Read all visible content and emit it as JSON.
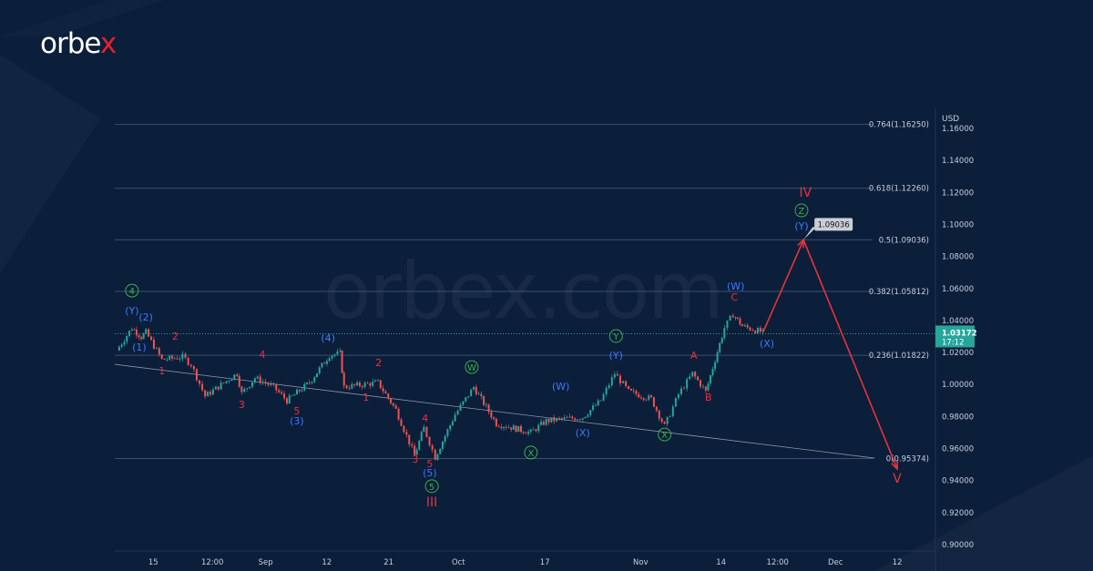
{
  "brand": {
    "logo_main": "orbe",
    "logo_accent": "x",
    "watermark": "orbex.com"
  },
  "colors": {
    "background": "#0b1e3a",
    "up": "#26a69a",
    "down": "#ef5350",
    "wave_red": "#e8333c",
    "wave_blue": "#3d7bff",
    "wave_green": "#3fae49",
    "price_tag": "#26a69a",
    "fib": "#3a5170"
  },
  "chart_data": {
    "type": "line",
    "title": "",
    "currency_label": "USD",
    "ylim": [
      0.89,
      1.165
    ],
    "xlim": [
      -0.7,
      123
    ],
    "y_ticks": [
      "1.16000",
      "1.14000",
      "1.12000",
      "1.10000",
      "1.08000",
      "1.06000",
      "1.04000",
      "1.02000",
      "1.00000",
      "0.98000",
      "0.96000",
      "0.94000",
      "0.92000",
      "0.90000"
    ],
    "x_ticks": [
      {
        "label": "15",
        "day": 5.1
      },
      {
        "label": "12:00",
        "day": 14
      },
      {
        "label": "Sep",
        "day": 22
      },
      {
        "label": "12",
        "day": 31.2
      },
      {
        "label": "21",
        "day": 40.5
      },
      {
        "label": "Oct",
        "day": 51
      },
      {
        "label": "17",
        "day": 64
      },
      {
        "label": "Nov",
        "day": 78.4
      },
      {
        "label": "14",
        "day": 90.5
      },
      {
        "label": "12:00",
        "day": 99
      },
      {
        "label": "Dec",
        "day": 107.7
      },
      {
        "label": "12",
        "day": 117
      }
    ],
    "series": [
      {
        "name": "price",
        "points": [
          [
            -0.4,
            1.0212
          ],
          [
            1.9,
            1.0354
          ],
          [
            3.3,
            1.0297
          ],
          [
            4.0,
            1.0326
          ],
          [
            6.4,
            1.0155
          ],
          [
            9.5,
            1.0172
          ],
          [
            10.8,
            1.0126
          ],
          [
            12.9,
            0.9927
          ],
          [
            17.7,
            1.0069
          ],
          [
            18.4,
            0.9944
          ],
          [
            20.4,
            1.0041
          ],
          [
            23.2,
            0.9984
          ],
          [
            25.2,
            0.9899
          ],
          [
            28.6,
            1.0012
          ],
          [
            31.6,
            1.0183
          ],
          [
            33.2,
            1.0194
          ],
          [
            33.8,
            0.9984
          ],
          [
            38.9,
            1.0012
          ],
          [
            41.6,
            0.9842
          ],
          [
            44.4,
            0.9557
          ],
          [
            45.8,
            0.9728
          ],
          [
            47.5,
            0.9546
          ],
          [
            50.5,
            0.9813
          ],
          [
            53.3,
            0.9984
          ],
          [
            56.7,
            0.9756
          ],
          [
            61.9,
            0.97
          ],
          [
            64.2,
            0.9773
          ],
          [
            69.7,
            0.9796
          ],
          [
            72.4,
            0.9899
          ],
          [
            74.5,
            1.0069
          ],
          [
            76.6,
            0.9956
          ],
          [
            80.0,
            0.991
          ],
          [
            82.0,
            0.9739
          ],
          [
            84.1,
            0.9939
          ],
          [
            86.2,
            1.0069
          ],
          [
            88.2,
            0.9956
          ],
          [
            89.6,
            1.0155
          ],
          [
            91.0,
            1.0354
          ],
          [
            92.3,
            1.0439
          ],
          [
            93.7,
            1.0365
          ],
          [
            96.8,
            1.0325
          ]
        ]
      }
    ],
    "projection": [
      [
        96.8,
        1.0325
      ],
      [
        102.9,
        1.09036
      ],
      [
        117,
        0.9472
      ]
    ],
    "trendline": [
      [
        -0.7,
        1.0126
      ],
      [
        113.6,
        0.954
      ]
    ],
    "fib_levels": [
      {
        "label": "0.764(1.16250)",
        "price": 1.1625
      },
      {
        "label": "0.618(1.12260)",
        "price": 1.1226
      },
      {
        "label": "0.5(1.09036)",
        "price": 1.09036
      },
      {
        "label": "0.382(1.05812)",
        "price": 1.05812
      },
      {
        "label": "0.236(1.01822)",
        "price": 1.01822
      },
      {
        "label": "0(0.95374)",
        "price": 0.95374
      }
    ],
    "current_price": {
      "price": 1.03172,
      "label": "1.03172",
      "time_left": "17:12"
    },
    "target_callout": {
      "label": "1.09036",
      "day": 102.9,
      "price": 1.09036
    },
    "wave_labels": [
      {
        "t": "4",
        "day": 1.9,
        "p": 1.0564,
        "c": "green",
        "circle": true
      },
      {
        "t": "(Y)",
        "day": 1.9,
        "p": 1.0439,
        "c": "blue"
      },
      {
        "t": "(2)",
        "day": 4.0,
        "p": 1.0399,
        "c": "blue"
      },
      {
        "t": "(1)",
        "day": 3.0,
        "p": 1.0212,
        "c": "blue"
      },
      {
        "t": "2",
        "day": 8.4,
        "p": 1.028,
        "c": "red"
      },
      {
        "t": "1",
        "day": 6.4,
        "p": 1.0064,
        "c": "red"
      },
      {
        "t": "3",
        "day": 18.4,
        "p": 0.9853,
        "c": "red"
      },
      {
        "t": "4",
        "day": 21.5,
        "p": 1.0166,
        "c": "red"
      },
      {
        "t": "5",
        "day": 26.7,
        "p": 0.9813,
        "c": "red"
      },
      {
        "t": "(3)",
        "day": 26.7,
        "p": 0.9751,
        "c": "blue"
      },
      {
        "t": "(4)",
        "day": 31.4,
        "p": 1.0269,
        "c": "blue"
      },
      {
        "t": "2",
        "day": 39.0,
        "p": 1.0115,
        "c": "red"
      },
      {
        "t": "1",
        "day": 37.1,
        "p": 0.9899,
        "c": "red"
      },
      {
        "t": "4",
        "day": 46.0,
        "p": 0.9768,
        "c": "red"
      },
      {
        "t": "3",
        "day": 44.5,
        "p": 0.9512,
        "c": "red"
      },
      {
        "t": "5",
        "day": 46.7,
        "p": 0.9484,
        "c": "red"
      },
      {
        "t": "(5)",
        "day": 46.7,
        "p": 0.9427,
        "c": "blue"
      },
      {
        "t": "5",
        "day": 47.0,
        "p": 0.9342,
        "c": "green",
        "circle": true
      },
      {
        "t": "III",
        "day": 47.0,
        "p": 0.9239,
        "c": "red",
        "big": true
      },
      {
        "t": "W",
        "day": 53.0,
        "p": 1.0086,
        "c": "green",
        "circle": true
      },
      {
        "t": "X",
        "day": 61.9,
        "p": 0.9552,
        "c": "green",
        "circle": true
      },
      {
        "t": "(W)",
        "day": 66.4,
        "p": 0.9967,
        "c": "blue"
      },
      {
        "t": "(X)",
        "day": 69.7,
        "p": 0.9677,
        "c": "blue"
      },
      {
        "t": "Y",
        "day": 74.7,
        "p": 1.028,
        "c": "green",
        "circle": true
      },
      {
        "t": "(Y)",
        "day": 74.7,
        "p": 1.016,
        "c": "blue"
      },
      {
        "t": "X",
        "day": 82.0,
        "p": 0.9665,
        "c": "green",
        "circle": true
      },
      {
        "t": "A",
        "day": 86.4,
        "p": 1.016,
        "c": "red"
      },
      {
        "t": "B",
        "day": 88.6,
        "p": 0.9899,
        "c": "red"
      },
      {
        "t": "(W)",
        "day": 92.7,
        "p": 1.0593,
        "c": "blue"
      },
      {
        "t": "C",
        "day": 92.5,
        "p": 1.0525,
        "c": "red"
      },
      {
        "t": "(X)",
        "day": 97.4,
        "p": 1.0234,
        "c": "blue"
      },
      {
        "t": "Z",
        "day": 102.6,
        "p": 1.1065,
        "c": "green",
        "circle": true
      },
      {
        "t": "(Y)",
        "day": 102.6,
        "p": 1.0968,
        "c": "blue"
      },
      {
        "t": "IV",
        "day": 103.2,
        "p": 1.1173,
        "c": "red",
        "big": true
      },
      {
        "t": "V",
        "day": 117,
        "p": 0.9387,
        "c": "red",
        "big": true
      }
    ]
  }
}
